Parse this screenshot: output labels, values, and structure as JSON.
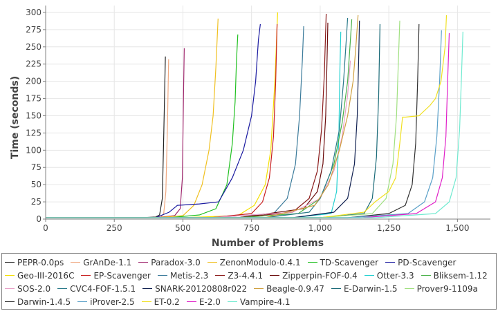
{
  "chart_data": {
    "type": "line",
    "title": "",
    "xlabel": "Number of Problems",
    "ylabel": "Time (seconds)",
    "xlim": [
      0,
      1620
    ],
    "ylim": [
      0,
      310
    ],
    "xticks": [
      0,
      250,
      500,
      750,
      1000,
      1250,
      1500
    ],
    "xtick_labels": [
      "0",
      "250",
      "500",
      "750",
      "1,000",
      "1,250",
      "1,500"
    ],
    "yticks": [
      0,
      25,
      50,
      75,
      100,
      125,
      150,
      175,
      200,
      225,
      250,
      275,
      300
    ],
    "ytick_labels": [
      "0",
      "25",
      "50",
      "75",
      "100",
      "125",
      "150",
      "175",
      "200",
      "225",
      "250",
      "275",
      "300"
    ],
    "grid": true,
    "legend_position": "bottom",
    "series": [
      {
        "name": "PEPR-0.0ps",
        "color": "#222222",
        "x": [
          0,
          350,
          400,
          415,
          425,
          430,
          436
        ],
        "y": [
          2,
          2,
          3,
          6,
          30,
          120,
          236
        ]
      },
      {
        "name": "GrAnDe-1.1",
        "color": "#f0a880",
        "x": [
          0,
          380,
          420,
          430,
          438,
          444,
          448
        ],
        "y": [
          2,
          2,
          3,
          8,
          40,
          140,
          232
        ]
      },
      {
        "name": "Paradox-3.0",
        "color": "#a0286e",
        "x": [
          0,
          400,
          470,
          490,
          498,
          502,
          505
        ],
        "y": [
          2,
          2,
          5,
          15,
          60,
          180,
          248
        ]
      },
      {
        "name": "ZenonModulo-0.4.1",
        "color": "#f0c020",
        "x": [
          0,
          400,
          500,
          540,
          570,
          595,
          610,
          620,
          628
        ],
        "y": [
          2,
          2,
          5,
          20,
          50,
          100,
          150,
          220,
          291
        ]
      },
      {
        "name": "TD-Scavenger",
        "color": "#20c020",
        "x": [
          0,
          450,
          560,
          620,
          660,
          680,
          690,
          695,
          700
        ],
        "y": [
          2,
          2,
          6,
          15,
          50,
          110,
          170,
          230,
          268
        ]
      },
      {
        "name": "PD-Scavenger",
        "color": "#1a1aa0",
        "x": [
          0,
          400,
          450,
          480,
          560,
          630,
          680,
          720,
          750,
          765,
          775,
          782
        ],
        "y": [
          2,
          2,
          10,
          20,
          22,
          25,
          60,
          100,
          150,
          200,
          260,
          283
        ]
      },
      {
        "name": "Geo-III-2016C",
        "color": "#f5e000",
        "x": [
          0,
          500,
          700,
          760,
          800,
          820,
          835,
          845
        ],
        "y": [
          2,
          2,
          5,
          20,
          50,
          100,
          200,
          300
        ]
      },
      {
        "name": "EP-Scavenger",
        "color": "#c81e1e",
        "x": [
          0,
          600,
          750,
          790,
          815,
          830,
          838,
          843
        ],
        "y": [
          2,
          2,
          8,
          25,
          60,
          120,
          200,
          283
        ]
      },
      {
        "name": "Metis-2.3",
        "color": "#3a7a9a",
        "x": [
          0,
          600,
          830,
          880,
          910,
          925,
          935,
          940
        ],
        "y": [
          2,
          2,
          8,
          30,
          80,
          150,
          230,
          280
        ]
      },
      {
        "name": "Z3-4.4.1",
        "color": "#8b1a1a",
        "x": [
          0,
          700,
          900,
          960,
          990,
          1005,
          1015,
          1022
        ],
        "y": [
          2,
          2,
          10,
          30,
          70,
          130,
          210,
          298
        ]
      },
      {
        "name": "Zipperpin-FOF-0.4",
        "color": "#6a0a0a",
        "x": [
          0,
          700,
          940,
          990,
          1010,
          1020,
          1025,
          1028
        ],
        "y": [
          2,
          2,
          15,
          40,
          80,
          150,
          230,
          285
        ]
      },
      {
        "name": "Otter-3.3",
        "color": "#20d0d0",
        "x": [
          0,
          900,
          1040,
          1060,
          1068,
          1072,
          1075
        ],
        "y": [
          2,
          2,
          8,
          40,
          120,
          220,
          272
        ]
      },
      {
        "name": "Bliksem-1.12",
        "color": "#48b048",
        "x": [
          0,
          700,
          920,
          1000,
          1050,
          1080,
          1100,
          1110,
          1115
        ],
        "y": [
          2,
          2,
          8,
          30,
          80,
          140,
          200,
          260,
          290
        ]
      },
      {
        "name": "SOS-2.0",
        "color": "#e8a0c8",
        "x": [
          0,
          600,
          900,
          1000,
          1050,
          1080,
          1100,
          1110
        ],
        "y": [
          2,
          2,
          10,
          30,
          70,
          120,
          180,
          230
        ]
      },
      {
        "name": "CVC4-FOF-1.5.1",
        "color": "#2a7a8a",
        "x": [
          0,
          800,
          960,
          1000,
          1040,
          1070,
          1085,
          1095,
          1100
        ],
        "y": [
          2,
          2,
          10,
          30,
          70,
          130,
          200,
          260,
          292
        ]
      },
      {
        "name": "SNARK-20120808r022",
        "color": "#102050",
        "x": [
          0,
          900,
          1050,
          1100,
          1125,
          1135,
          1140,
          1143
        ],
        "y": [
          2,
          2,
          10,
          30,
          80,
          150,
          230,
          288
        ]
      },
      {
        "name": "Beagle-0.9.47",
        "color": "#d0a040",
        "x": [
          0,
          800,
          980,
          1030,
          1070,
          1100,
          1120,
          1130,
          1138
        ],
        "y": [
          2,
          2,
          20,
          50,
          100,
          150,
          200,
          250,
          296
        ]
      },
      {
        "name": "E-Darwin-1.5",
        "color": "#1a6a78",
        "x": [
          0,
          1000,
          1160,
          1190,
          1205,
          1213,
          1218
        ],
        "y": [
          2,
          2,
          8,
          30,
          90,
          180,
          283
        ]
      },
      {
        "name": "Prover9-1109a",
        "color": "#a0e080",
        "x": [
          0,
          1000,
          1190,
          1240,
          1265,
          1278,
          1285,
          1290
        ],
        "y": [
          2,
          2,
          8,
          30,
          80,
          150,
          230,
          288
        ]
      },
      {
        "name": "Darwin-1.4.5",
        "color": "#303030",
        "x": [
          0,
          1100,
          1250,
          1310,
          1335,
          1348,
          1355,
          1360
        ],
        "y": [
          2,
          2,
          8,
          20,
          50,
          110,
          200,
          283
        ]
      },
      {
        "name": "iProver-2.5",
        "color": "#5aa0c8",
        "x": [
          0,
          1100,
          1320,
          1380,
          1410,
          1425,
          1435,
          1442
        ],
        "y": [
          2,
          2,
          8,
          25,
          60,
          120,
          200,
          274
        ]
      },
      {
        "name": "ET-0.2",
        "color": "#f0e020",
        "x": [
          0,
          1000,
          1160,
          1200,
          1250,
          1275,
          1290,
          1300,
          1310,
          1360,
          1400,
          1420,
          1440,
          1455,
          1460
        ],
        "y": [
          2,
          2,
          10,
          25,
          40,
          60,
          110,
          148,
          148,
          150,
          165,
          175,
          200,
          250,
          296
        ]
      },
      {
        "name": "E-2.0",
        "color": "#e020c8",
        "x": [
          0,
          1150,
          1350,
          1420,
          1445,
          1458,
          1465,
          1470
        ],
        "y": [
          2,
          2,
          8,
          25,
          60,
          120,
          210,
          270
        ]
      },
      {
        "name": "Vampire-4.1",
        "color": "#70ead0",
        "x": [
          0,
          1200,
          1420,
          1470,
          1495,
          1508,
          1515,
          1520
        ],
        "y": [
          2,
          2,
          8,
          25,
          60,
          130,
          210,
          272
        ]
      }
    ]
  }
}
